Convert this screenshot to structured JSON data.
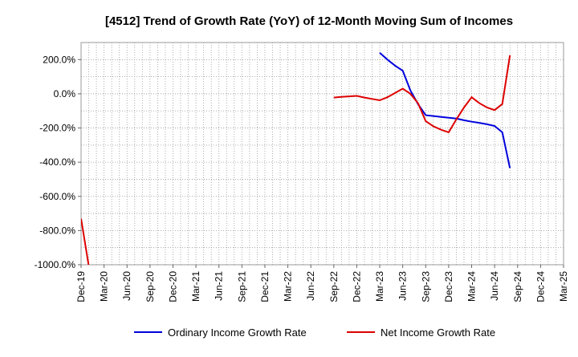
{
  "chart_data": {
    "type": "line",
    "title": "[4512]  Trend of Growth Rate (YoY) of 12-Month Moving Sum of Incomes",
    "xlabel": "",
    "ylabel": "",
    "ylim": [
      -1000,
      300
    ],
    "y_ticks": [
      200,
      0,
      -200,
      -400,
      -600,
      -800,
      -1000
    ],
    "y_tick_labels": [
      "200.0%",
      "0.0%",
      "-200.0%",
      "-400.0%",
      "-600.0%",
      "-800.0%",
      "-1000.0%"
    ],
    "x_start": "Dec-19",
    "x_ticks": [
      "Dec-19",
      "Mar-20",
      "Jun-20",
      "Sep-20",
      "Dec-20",
      "Mar-21",
      "Jun-21",
      "Sep-21",
      "Dec-21",
      "Mar-22",
      "Jun-22",
      "Sep-22",
      "Dec-22",
      "Mar-23",
      "Jun-23",
      "Sep-23",
      "Dec-23",
      "Mar-24",
      "Jun-24",
      "Sep-24",
      "Dec-24",
      "Mar-25"
    ],
    "x_end": "Mar-25",
    "grid": true,
    "legend_position": "bottom",
    "series": [
      {
        "name": "Ordinary Income Growth Rate",
        "color": "#0000dd",
        "points": [
          [
            "Mar-23",
            240
          ],
          [
            "Apr-23",
            200
          ],
          [
            "May-23",
            165
          ],
          [
            "Jun-23",
            135
          ],
          [
            "Jul-23",
            20
          ],
          [
            "Aug-23",
            -60
          ],
          [
            "Sep-23",
            -125
          ],
          [
            "Oct-23",
            -130
          ],
          [
            "Nov-23",
            -135
          ],
          [
            "Dec-23",
            -140
          ],
          [
            "Jan-24",
            -145
          ],
          [
            "Feb-24",
            -155
          ],
          [
            "Mar-24",
            -163
          ],
          [
            "Apr-24",
            -170
          ],
          [
            "May-24",
            -178
          ],
          [
            "Jun-24",
            -188
          ],
          [
            "Jul-24",
            -225
          ],
          [
            "Aug-24",
            -435
          ]
        ]
      },
      {
        "name": "Net Income Growth Rate",
        "color": "#dd0000",
        "points": [
          [
            "Dec-19",
            -730
          ],
          [
            "Jan-20",
            -1005
          ],
          [
            "Sep-22",
            -22
          ],
          [
            "Oct-22",
            -18
          ],
          [
            "Nov-22",
            -15
          ],
          [
            "Dec-22",
            -12
          ],
          [
            "Jan-23",
            -22
          ],
          [
            "Feb-23",
            -30
          ],
          [
            "Mar-23",
            -38
          ],
          [
            "Apr-23",
            -20
          ],
          [
            "May-23",
            5
          ],
          [
            "Jun-23",
            30
          ],
          [
            "Jul-23",
            0
          ],
          [
            "Aug-23",
            -55
          ],
          [
            "Sep-23",
            -160
          ],
          [
            "Oct-23",
            -190
          ],
          [
            "Nov-23",
            -210
          ],
          [
            "Dec-23",
            -225
          ],
          [
            "Jan-24",
            -150
          ],
          [
            "Feb-24",
            -80
          ],
          [
            "Mar-24",
            -20
          ],
          [
            "Apr-24",
            -55
          ],
          [
            "May-24",
            -80
          ],
          [
            "Jun-24",
            -95
          ],
          [
            "Jul-24",
            -60
          ],
          [
            "Aug-24",
            225
          ]
        ]
      }
    ]
  }
}
